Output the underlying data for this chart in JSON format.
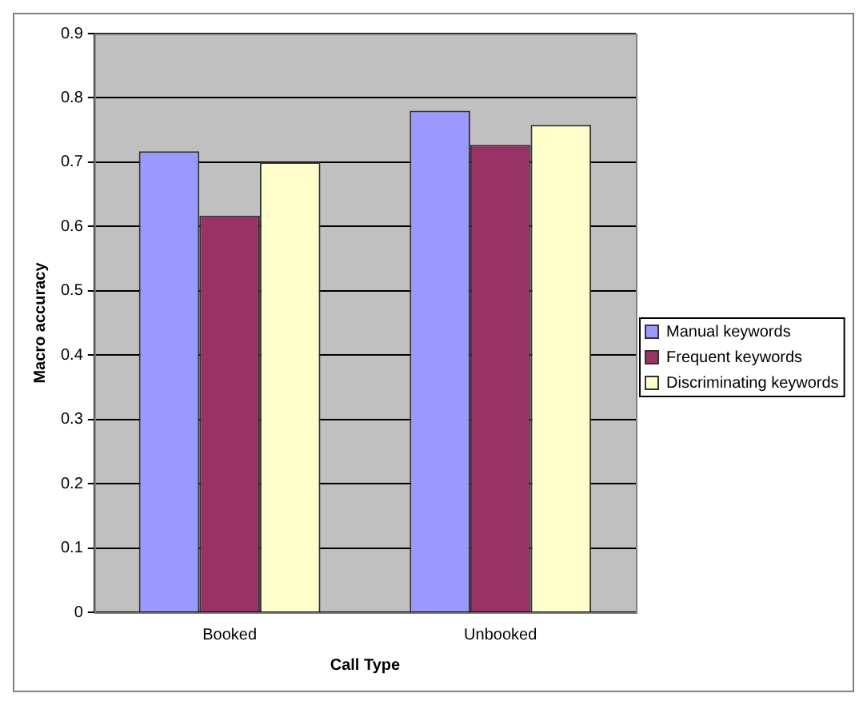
{
  "chart_data": {
    "type": "bar",
    "xlabel": "Call Type",
    "ylabel": "Macro accuracy",
    "categories": [
      "Booked",
      "Unbooked"
    ],
    "series": [
      {
        "name": "Manual keywords",
        "color": "#9999ff",
        "values": [
          0.717,
          0.78
        ]
      },
      {
        "name": "Frequent keywords",
        "color": "#993366",
        "values": [
          0.617,
          0.727
        ]
      },
      {
        "name": "Discriminating keywords",
        "color": "#ffffcc",
        "values": [
          0.7,
          0.758
        ]
      }
    ],
    "ylim": [
      0,
      0.9
    ],
    "yticks": [
      0,
      0.1,
      0.2,
      0.3,
      0.4,
      0.5,
      0.6,
      0.7,
      0.8,
      0.9
    ],
    "grid": "y",
    "legend": "right"
  }
}
